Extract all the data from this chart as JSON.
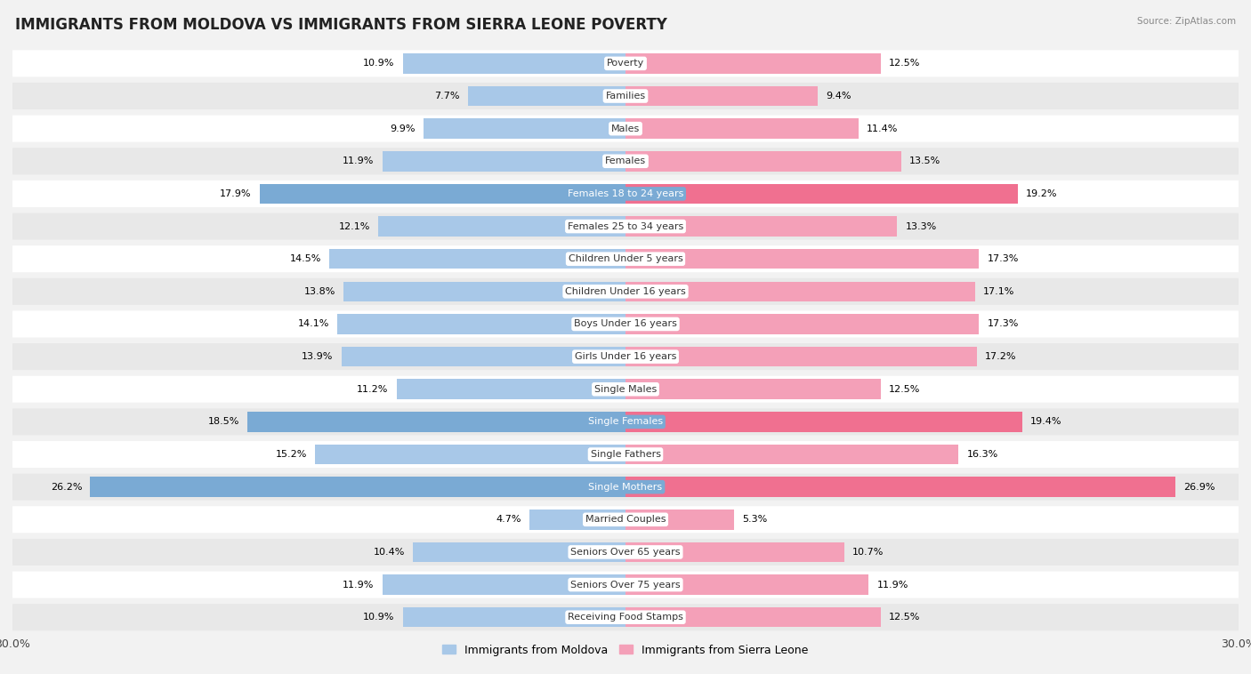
{
  "title": "IMMIGRANTS FROM MOLDOVA VS IMMIGRANTS FROM SIERRA LEONE POVERTY",
  "source": "Source: ZipAtlas.com",
  "categories": [
    "Poverty",
    "Families",
    "Males",
    "Females",
    "Females 18 to 24 years",
    "Females 25 to 34 years",
    "Children Under 5 years",
    "Children Under 16 years",
    "Boys Under 16 years",
    "Girls Under 16 years",
    "Single Males",
    "Single Females",
    "Single Fathers",
    "Single Mothers",
    "Married Couples",
    "Seniors Over 65 years",
    "Seniors Over 75 years",
    "Receiving Food Stamps"
  ],
  "moldova_values": [
    10.9,
    7.7,
    9.9,
    11.9,
    17.9,
    12.1,
    14.5,
    13.8,
    14.1,
    13.9,
    11.2,
    18.5,
    15.2,
    26.2,
    4.7,
    10.4,
    11.9,
    10.9
  ],
  "sierra_leone_values": [
    12.5,
    9.4,
    11.4,
    13.5,
    19.2,
    13.3,
    17.3,
    17.1,
    17.3,
    17.2,
    12.5,
    19.4,
    16.3,
    26.9,
    5.3,
    10.7,
    11.9,
    12.5
  ],
  "moldova_color": "#a8c8e8",
  "sierra_leone_color": "#f4a0b8",
  "moldova_highlight_color": "#7aaad4",
  "sierra_leone_highlight_color": "#f07090",
  "highlight_categories": [
    "Females 18 to 24 years",
    "Single Females",
    "Single Mothers"
  ],
  "axis_max": 30.0,
  "background_color": "#f2f2f2",
  "row_bg_even": "#ffffff",
  "row_bg_odd": "#e8e8e8",
  "label_bg_normal": "#ffffff",
  "label_bg_highlight": "#e06080",
  "legend_label_moldova": "Immigrants from Moldova",
  "legend_label_sierra": "Immigrants from Sierra Leone",
  "title_fontsize": 12,
  "label_fontsize": 8,
  "value_fontsize": 8
}
